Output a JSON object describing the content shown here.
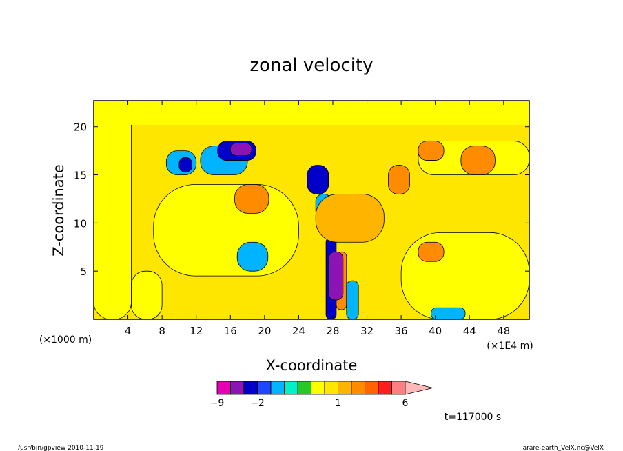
{
  "chart_data": {
    "type": "heatmap",
    "title": "zonal velocity",
    "xlabel": "X-coordinate",
    "ylabel": "Z-coordinate",
    "x_unit_label": "(×1E4 m)",
    "z_unit_label": "(×1000 m)",
    "xlim": [
      0,
      51
    ],
    "ylim": [
      0,
      22.7
    ],
    "x_ticks": [
      4,
      8,
      12,
      16,
      20,
      24,
      28,
      32,
      36,
      40,
      44,
      48
    ],
    "y_ticks": [
      5,
      10,
      15,
      20
    ],
    "x_tick_labels": [
      "4",
      "8",
      "12",
      "16",
      "20",
      "24",
      "28",
      "32",
      "36",
      "40",
      "44",
      "48"
    ],
    "y_tick_labels": [
      "5",
      "10",
      "15",
      "20"
    ],
    "colorbar": {
      "levels": [
        -9,
        -7,
        -4,
        -2,
        -1.5,
        -1,
        -0.5,
        0,
        0.5,
        1,
        1.5,
        2,
        3,
        4,
        6
      ],
      "colors": [
        "#e600b4",
        "#8c14b4",
        "#0000c8",
        "#1e46ff",
        "#00b4ff",
        "#00f0c8",
        "#28c828",
        "#ffff00",
        "#ffe600",
        "#ffb400",
        "#ff8c00",
        "#ff6400",
        "#ff1e1e",
        "#ff8080",
        "#ffb9b9"
      ],
      "labels": [
        {
          "value": -9,
          "text": "−9"
        },
        {
          "value": -2,
          "text": "−2"
        },
        {
          "value": 1,
          "text": "1"
        },
        {
          "value": 6,
          "text": "6"
        }
      ]
    },
    "regions": [
      {
        "x": [
          0,
          51
        ],
        "z": [
          0,
          22.7
        ],
        "level": 0.5
      },
      {
        "x": [
          0,
          4.4
        ],
        "z": [
          0,
          22.7
        ],
        "level": 0
      },
      {
        "x": [
          0,
          51
        ],
        "z": [
          20.2,
          22.7
        ],
        "level": 0
      },
      {
        "x": [
          7,
          24
        ],
        "z": [
          4.5,
          14
        ],
        "level": 0
      },
      {
        "x": [
          36,
          51
        ],
        "z": [
          0,
          9
        ],
        "level": 0
      },
      {
        "x": [
          38,
          51
        ],
        "z": [
          15,
          18.5
        ],
        "level": 0
      },
      {
        "x": [
          4.4,
          8
        ],
        "z": [
          0,
          5
        ],
        "level": 0
      },
      {
        "x": [
          12.5,
          18
        ],
        "z": [
          15,
          18
        ],
        "level": -1.5
      },
      {
        "x": [
          14.5,
          19
        ],
        "z": [
          16.5,
          18.5
        ],
        "level": -4
      },
      {
        "x": [
          16,
          18.5
        ],
        "z": [
          17,
          18.3
        ],
        "level": -7
      },
      {
        "x": [
          8.5,
          12
        ],
        "z": [
          15,
          17.5
        ],
        "level": -1.5
      },
      {
        "x": [
          10,
          11.5
        ],
        "z": [
          15.3,
          16.8
        ],
        "level": -4
      },
      {
        "x": [
          16.8,
          20.4
        ],
        "z": [
          5,
          8
        ],
        "level": -1.5
      },
      {
        "x": [
          16.5,
          20.5
        ],
        "z": [
          11,
          14
        ],
        "level": 1.5
      },
      {
        "x": [
          25,
          27.5
        ],
        "z": [
          13,
          16
        ],
        "level": -4
      },
      {
        "x": [
          26,
          27.8
        ],
        "z": [
          10.5,
          13
        ],
        "level": -1.5
      },
      {
        "x": [
          27.2,
          28.4
        ],
        "z": [
          0,
          8.5
        ],
        "level": -4
      },
      {
        "x": [
          28.4,
          29.6
        ],
        "z": [
          1,
          7
        ],
        "level": 1.5
      },
      {
        "x": [
          27.5,
          29.2
        ],
        "z": [
          2,
          7
        ],
        "level": -7
      },
      {
        "x": [
          29.6,
          31
        ],
        "z": [
          0,
          4
        ],
        "level": -1.5
      },
      {
        "x": [
          34.5,
          37
        ],
        "z": [
          13,
          16
        ],
        "level": 1.5
      },
      {
        "x": [
          38,
          41
        ],
        "z": [
          16.5,
          18.5
        ],
        "level": 1.5
      },
      {
        "x": [
          43,
          47
        ],
        "z": [
          15,
          18
        ],
        "level": 1.5
      },
      {
        "x": [
          38,
          41
        ],
        "z": [
          6,
          8
        ],
        "level": 1.5
      },
      {
        "x": [
          39.5,
          43.5
        ],
        "z": [
          0,
          1.2
        ],
        "level": -1.5
      },
      {
        "x": [
          26,
          34
        ],
        "z": [
          8,
          13
        ],
        "level": 1
      }
    ],
    "annotations": [
      {
        "text": "t=117000 s"
      }
    ]
  },
  "footer": {
    "left": "/usr/bin/gpview  2010-11-19",
    "right": "arare-earth_VelX.nc@VelX"
  }
}
